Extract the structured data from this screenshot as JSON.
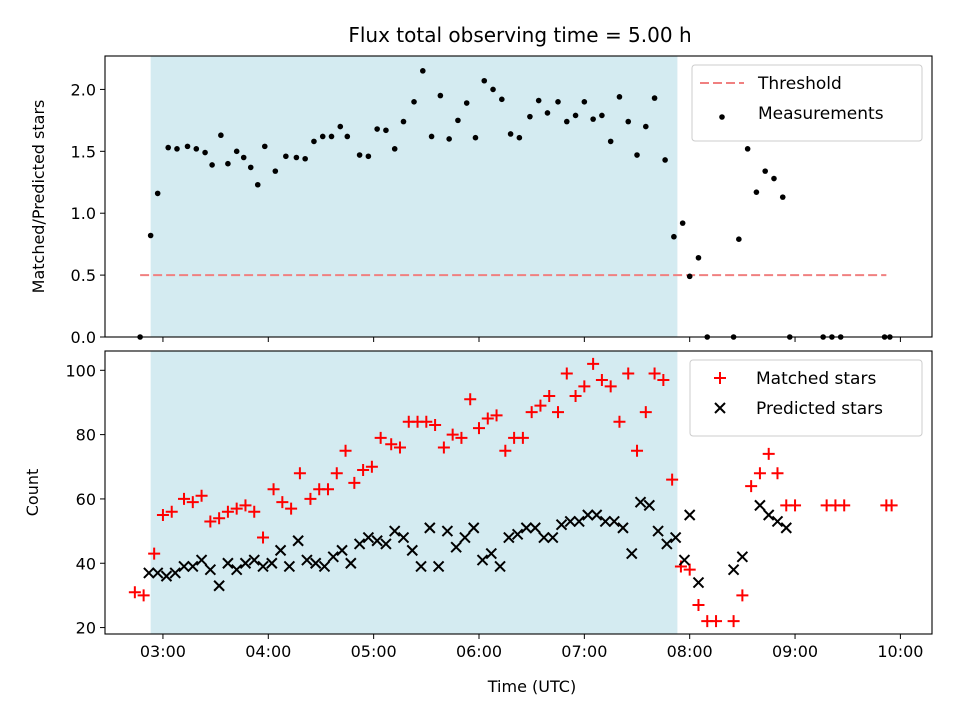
{
  "chart_data": [
    {
      "type": "scatter",
      "title": "Flux total observing time = 5.00 h",
      "xlabel": "",
      "ylabel": "Matched/Predicted stars",
      "ylim": [
        0,
        2.27
      ],
      "xlim": [
        "02:27",
        "10:18"
      ],
      "x_ticks": [
        "03:00",
        "04:00",
        "05:00",
        "06:00",
        "07:00",
        "08:00",
        "09:00",
        "10:00"
      ],
      "y_ticks": [
        "0.0",
        "0.5",
        "1.0",
        "1.5",
        "2.0"
      ],
      "highlight_span": {
        "from": "02:53",
        "to": "07:53",
        "color": "#d4ebf1"
      },
      "legend_position": "upper right",
      "threshold": {
        "name": "Threshold",
        "value": 0.5,
        "from": "02:47",
        "to": "09:52",
        "color": "#f08080",
        "style": "dashed"
      },
      "series": [
        {
          "name": "Measurements",
          "marker": "dot",
          "color": "#000000",
          "points": [
            [
              "02:47",
              0.0
            ],
            [
              "02:53",
              0.82
            ],
            [
              "02:57",
              1.16
            ],
            [
              "03:03",
              1.53
            ],
            [
              "03:08",
              1.52
            ],
            [
              "03:14",
              1.54
            ],
            [
              "03:19",
              1.52
            ],
            [
              "03:24",
              1.49
            ],
            [
              "03:28",
              1.39
            ],
            [
              "03:33",
              1.63
            ],
            [
              "03:37",
              1.4
            ],
            [
              "03:42",
              1.5
            ],
            [
              "03:46",
              1.45
            ],
            [
              "03:50",
              1.37
            ],
            [
              "03:54",
              1.23
            ],
            [
              "03:58",
              1.54
            ],
            [
              "04:04",
              1.34
            ],
            [
              "04:10",
              1.46
            ],
            [
              "04:16",
              1.45
            ],
            [
              "04:21",
              1.44
            ],
            [
              "04:26",
              1.58
            ],
            [
              "04:31",
              1.62
            ],
            [
              "04:36",
              1.62
            ],
            [
              "04:41",
              1.7
            ],
            [
              "04:45",
              1.62
            ],
            [
              "04:52",
              1.47
            ],
            [
              "04:57",
              1.46
            ],
            [
              "05:02",
              1.68
            ],
            [
              "05:07",
              1.67
            ],
            [
              "05:12",
              1.52
            ],
            [
              "05:17",
              1.74
            ],
            [
              "05:23",
              1.9
            ],
            [
              "05:28",
              2.15
            ],
            [
              "05:33",
              1.62
            ],
            [
              "05:38",
              1.95
            ],
            [
              "05:43",
              1.6
            ],
            [
              "05:48",
              1.75
            ],
            [
              "05:53",
              1.89
            ],
            [
              "05:58",
              1.61
            ],
            [
              "06:03",
              2.07
            ],
            [
              "06:08",
              2.0
            ],
            [
              "06:13",
              1.92
            ],
            [
              "06:18",
              1.64
            ],
            [
              "06:23",
              1.61
            ],
            [
              "06:29",
              1.78
            ],
            [
              "06:34",
              1.91
            ],
            [
              "06:39",
              1.81
            ],
            [
              "06:45",
              1.9
            ],
            [
              "06:50",
              1.74
            ],
            [
              "06:55",
              1.79
            ],
            [
              "07:00",
              1.9
            ],
            [
              "07:05",
              1.76
            ],
            [
              "07:10",
              1.79
            ],
            [
              "07:15",
              1.58
            ],
            [
              "07:20",
              1.94
            ],
            [
              "07:25",
              1.74
            ],
            [
              "07:30",
              1.47
            ],
            [
              "07:35",
              1.7
            ],
            [
              "07:40",
              1.93
            ],
            [
              "07:46",
              1.43
            ],
            [
              "07:51",
              0.81
            ],
            [
              "07:56",
              0.92
            ],
            [
              "07:60",
              0.49
            ],
            [
              "08:05",
              0.64
            ],
            [
              "08:10",
              0.0
            ],
            [
              "08:25",
              0.0
            ],
            [
              "08:28",
              0.79
            ],
            [
              "08:33",
              1.52
            ],
            [
              "08:38",
              1.17
            ],
            [
              "08:43",
              1.34
            ],
            [
              "08:48",
              1.28
            ],
            [
              "08:53",
              1.13
            ],
            [
              "08:57",
              0.0
            ],
            [
              "09:16",
              0.0
            ],
            [
              "09:21",
              0.0
            ],
            [
              "09:26",
              0.0
            ],
            [
              "09:51",
              0.0
            ],
            [
              "09:54",
              0.0
            ]
          ]
        }
      ]
    },
    {
      "type": "scatter",
      "title": "",
      "xlabel": "Time (UTC)",
      "ylabel": "Count",
      "ylim": [
        18,
        106
      ],
      "xlim": [
        "02:27",
        "10:18"
      ],
      "x_ticks": [
        "03:00",
        "04:00",
        "05:00",
        "06:00",
        "07:00",
        "08:00",
        "09:00",
        "10:00"
      ],
      "y_ticks": [
        "20",
        "40",
        "60",
        "80",
        "100"
      ],
      "highlight_span": {
        "from": "02:53",
        "to": "07:53",
        "color": "#d4ebf1"
      },
      "legend_position": "upper right",
      "series": [
        {
          "name": "Matched stars",
          "marker": "plus",
          "color": "#ff0000",
          "points": [
            [
              "02:44",
              31
            ],
            [
              "02:49",
              30
            ],
            [
              "02:55",
              43
            ],
            [
              "03:00",
              55
            ],
            [
              "03:05",
              56
            ],
            [
              "03:12",
              60
            ],
            [
              "03:17",
              59
            ],
            [
              "03:22",
              61
            ],
            [
              "03:27",
              53
            ],
            [
              "03:32",
              54
            ],
            [
              "03:37",
              56
            ],
            [
              "03:42",
              57
            ],
            [
              "03:47",
              58
            ],
            [
              "03:52",
              56
            ],
            [
              "03:57",
              48
            ],
            [
              "04:03",
              63
            ],
            [
              "04:08",
              59
            ],
            [
              "04:13",
              57
            ],
            [
              "04:18",
              68
            ],
            [
              "04:24",
              60
            ],
            [
              "04:29",
              63
            ],
            [
              "04:34",
              63
            ],
            [
              "04:39",
              68
            ],
            [
              "04:44",
              75
            ],
            [
              "04:49",
              65
            ],
            [
              "04:54",
              69
            ],
            [
              "04:59",
              70
            ],
            [
              "05:04",
              79
            ],
            [
              "05:10",
              77
            ],
            [
              "05:15",
              76
            ],
            [
              "05:20",
              84
            ],
            [
              "05:25",
              84
            ],
            [
              "05:30",
              84
            ],
            [
              "05:35",
              83
            ],
            [
              "05:40",
              76
            ],
            [
              "05:45",
              80
            ],
            [
              "05:50",
              79
            ],
            [
              "05:55",
              91
            ],
            [
              "06:00",
              82
            ],
            [
              "06:05",
              85
            ],
            [
              "06:10",
              86
            ],
            [
              "06:15",
              75
            ],
            [
              "06:20",
              79
            ],
            [
              "06:25",
              79
            ],
            [
              "06:30",
              87
            ],
            [
              "06:35",
              89
            ],
            [
              "06:40",
              92
            ],
            [
              "06:45",
              87
            ],
            [
              "06:50",
              99
            ],
            [
              "06:55",
              92
            ],
            [
              "07:00",
              95
            ],
            [
              "07:05",
              102
            ],
            [
              "07:10",
              97
            ],
            [
              "07:15",
              95
            ],
            [
              "07:20",
              84
            ],
            [
              "07:25",
              99
            ],
            [
              "07:30",
              75
            ],
            [
              "07:35",
              87
            ],
            [
              "07:40",
              99
            ],
            [
              "07:45",
              97
            ],
            [
              "07:50",
              66
            ],
            [
              "07:55",
              39
            ],
            [
              "07:60",
              38
            ],
            [
              "08:05",
              27
            ],
            [
              "08:10",
              22
            ],
            [
              "08:15",
              22
            ],
            [
              "08:25",
              22
            ],
            [
              "08:30",
              30
            ],
            [
              "08:35",
              64
            ],
            [
              "08:40",
              68
            ],
            [
              "08:45",
              74
            ],
            [
              "08:50",
              68
            ],
            [
              "08:55",
              58
            ],
            [
              "09:00",
              58
            ],
            [
              "09:18",
              58
            ],
            [
              "09:23",
              58
            ],
            [
              "09:28",
              58
            ],
            [
              "09:52",
              58
            ],
            [
              "09:55",
              58
            ]
          ]
        },
        {
          "name": "Predicted stars",
          "marker": "x",
          "color": "#000000",
          "points": [
            [
              "02:52",
              37
            ],
            [
              "02:57",
              37
            ],
            [
              "03:02",
              36
            ],
            [
              "03:07",
              37
            ],
            [
              "03:12",
              39
            ],
            [
              "03:17",
              39
            ],
            [
              "03:22",
              41
            ],
            [
              "03:27",
              38
            ],
            [
              "03:32",
              33
            ],
            [
              "03:37",
              40
            ],
            [
              "03:42",
              38
            ],
            [
              "03:47",
              40
            ],
            [
              "03:52",
              41
            ],
            [
              "03:57",
              39
            ],
            [
              "04:02",
              40
            ],
            [
              "04:07",
              44
            ],
            [
              "04:12",
              39
            ],
            [
              "04:17",
              47
            ],
            [
              "04:22",
              41
            ],
            [
              "04:27",
              40
            ],
            [
              "04:32",
              39
            ],
            [
              "04:37",
              42
            ],
            [
              "04:42",
              44
            ],
            [
              "04:47",
              40
            ],
            [
              "04:52",
              46
            ],
            [
              "04:57",
              48
            ],
            [
              "05:02",
              47
            ],
            [
              "05:07",
              46
            ],
            [
              "05:12",
              50
            ],
            [
              "05:17",
              48
            ],
            [
              "05:22",
              44
            ],
            [
              "05:27",
              39
            ],
            [
              "05:32",
              51
            ],
            [
              "05:37",
              39
            ],
            [
              "05:42",
              50
            ],
            [
              "05:47",
              45
            ],
            [
              "05:52",
              48
            ],
            [
              "05:57",
              51
            ],
            [
              "06:02",
              41
            ],
            [
              "06:07",
              43
            ],
            [
              "06:12",
              39
            ],
            [
              "06:17",
              48
            ],
            [
              "06:22",
              49
            ],
            [
              "06:27",
              51
            ],
            [
              "06:32",
              51
            ],
            [
              "06:37",
              48
            ],
            [
              "06:42",
              48
            ],
            [
              "06:47",
              52
            ],
            [
              "06:52",
              53
            ],
            [
              "06:57",
              53
            ],
            [
              "07:02",
              55
            ],
            [
              "07:07",
              55
            ],
            [
              "07:12",
              53
            ],
            [
              "07:17",
              53
            ],
            [
              "07:22",
              51
            ],
            [
              "07:27",
              43
            ],
            [
              "07:32",
              59
            ],
            [
              "07:37",
              58
            ],
            [
              "07:42",
              50
            ],
            [
              "07:47",
              46
            ],
            [
              "07:52",
              48
            ],
            [
              "07:57",
              41
            ],
            [
              "07:60",
              55
            ],
            [
              "08:05",
              34
            ],
            [
              "08:25",
              38
            ],
            [
              "08:30",
              42
            ],
            [
              "08:40",
              58
            ],
            [
              "08:45",
              55
            ],
            [
              "08:50",
              53
            ],
            [
              "08:55",
              51
            ]
          ]
        }
      ]
    }
  ]
}
